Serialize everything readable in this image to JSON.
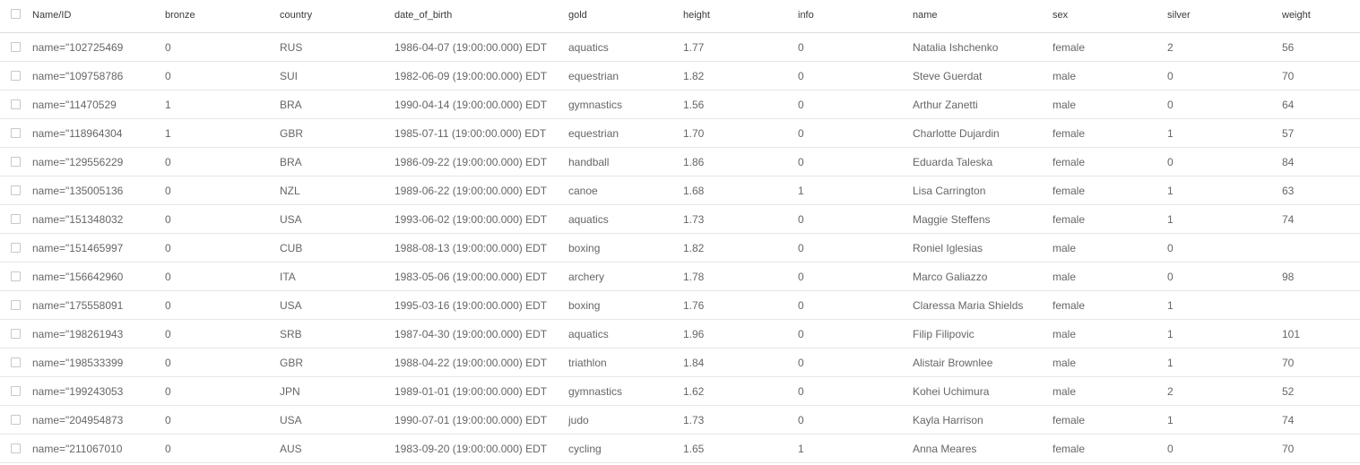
{
  "columns": {
    "id": "Name/ID",
    "bronze": "bronze",
    "country": "country",
    "date_of_birth": "date_of_birth",
    "gold": "gold",
    "height": "height",
    "info": "info",
    "name": "name",
    "sex": "sex",
    "silver": "silver",
    "weight": "weight"
  },
  "rows": [
    {
      "id": "name=\"102725469",
      "bronze": "0",
      "country": "RUS",
      "date_of_birth": "1986-04-07 (19:00:00.000) EDT",
      "gold": "aquatics",
      "height": "1.77",
      "info": "0",
      "name": "Natalia Ishchenko",
      "sex": "female",
      "silver": "2",
      "weight": "56"
    },
    {
      "id": "name=\"109758786",
      "bronze": "0",
      "country": "SUI",
      "date_of_birth": "1982-06-09 (19:00:00.000) EDT",
      "gold": "equestrian",
      "height": "1.82",
      "info": "0",
      "name": "Steve Guerdat",
      "sex": "male",
      "silver": "0",
      "weight": "70"
    },
    {
      "id": "name=\"11470529",
      "bronze": "1",
      "country": "BRA",
      "date_of_birth": "1990-04-14 (19:00:00.000) EDT",
      "gold": "gymnastics",
      "height": "1.56",
      "info": "0",
      "name": "Arthur Zanetti",
      "sex": "male",
      "silver": "0",
      "weight": "64"
    },
    {
      "id": "name=\"118964304",
      "bronze": "1",
      "country": "GBR",
      "date_of_birth": "1985-07-11 (19:00:00.000) EDT",
      "gold": "equestrian",
      "height": "1.70",
      "info": "0",
      "name": "Charlotte Dujardin",
      "sex": "female",
      "silver": "1",
      "weight": "57"
    },
    {
      "id": "name=\"129556229",
      "bronze": "0",
      "country": "BRA",
      "date_of_birth": "1986-09-22 (19:00:00.000) EDT",
      "gold": "handball",
      "height": "1.86",
      "info": "0",
      "name": "Eduarda Taleska",
      "sex": "female",
      "silver": "0",
      "weight": "84"
    },
    {
      "id": "name=\"135005136",
      "bronze": "0",
      "country": "NZL",
      "date_of_birth": "1989-06-22 (19:00:00.000) EDT",
      "gold": "canoe",
      "height": "1.68",
      "info": "1",
      "name": "Lisa Carrington",
      "sex": "female",
      "silver": "1",
      "weight": "63"
    },
    {
      "id": "name=\"151348032",
      "bronze": "0",
      "country": "USA",
      "date_of_birth": "1993-06-02 (19:00:00.000) EDT",
      "gold": "aquatics",
      "height": "1.73",
      "info": "0",
      "name": "Maggie Steffens",
      "sex": "female",
      "silver": "1",
      "weight": "74"
    },
    {
      "id": "name=\"151465997",
      "bronze": "0",
      "country": "CUB",
      "date_of_birth": "1988-08-13 (19:00:00.000) EDT",
      "gold": "boxing",
      "height": "1.82",
      "info": "0",
      "name": "Roniel Iglesias",
      "sex": "male",
      "silver": "0",
      "weight": ""
    },
    {
      "id": "name=\"156642960",
      "bronze": "0",
      "country": "ITA",
      "date_of_birth": "1983-05-06 (19:00:00.000) EDT",
      "gold": "archery",
      "height": "1.78",
      "info": "0",
      "name": "Marco Galiazzo",
      "sex": "male",
      "silver": "0",
      "weight": "98"
    },
    {
      "id": "name=\"175558091",
      "bronze": "0",
      "country": "USA",
      "date_of_birth": "1995-03-16 (19:00:00.000) EDT",
      "gold": "boxing",
      "height": "1.76",
      "info": "0",
      "name": "Claressa Maria Shields",
      "sex": "female",
      "silver": "1",
      "weight": ""
    },
    {
      "id": "name=\"198261943",
      "bronze": "0",
      "country": "SRB",
      "date_of_birth": "1987-04-30 (19:00:00.000) EDT",
      "gold": "aquatics",
      "height": "1.96",
      "info": "0",
      "name": "Filip Filipovic",
      "sex": "male",
      "silver": "1",
      "weight": "101"
    },
    {
      "id": "name=\"198533399",
      "bronze": "0",
      "country": "GBR",
      "date_of_birth": "1988-04-22 (19:00:00.000) EDT",
      "gold": "triathlon",
      "height": "1.84",
      "info": "0",
      "name": "Alistair Brownlee",
      "sex": "male",
      "silver": "1",
      "weight": "70"
    },
    {
      "id": "name=\"199243053",
      "bronze": "0",
      "country": "JPN",
      "date_of_birth": "1989-01-01 (19:00:00.000) EDT",
      "gold": "gymnastics",
      "height": "1.62",
      "info": "0",
      "name": "Kohei Uchimura",
      "sex": "male",
      "silver": "2",
      "weight": "52"
    },
    {
      "id": "name=\"204954873",
      "bronze": "0",
      "country": "USA",
      "date_of_birth": "1990-07-01 (19:00:00.000) EDT",
      "gold": "judo",
      "height": "1.73",
      "info": "0",
      "name": "Kayla Harrison",
      "sex": "female",
      "silver": "1",
      "weight": "74"
    },
    {
      "id": "name=\"211067010",
      "bronze": "0",
      "country": "AUS",
      "date_of_birth": "1983-09-20 (19:00:00.000) EDT",
      "gold": "cycling",
      "height": "1.65",
      "info": "1",
      "name": "Anna Meares",
      "sex": "female",
      "silver": "0",
      "weight": "70"
    }
  ]
}
